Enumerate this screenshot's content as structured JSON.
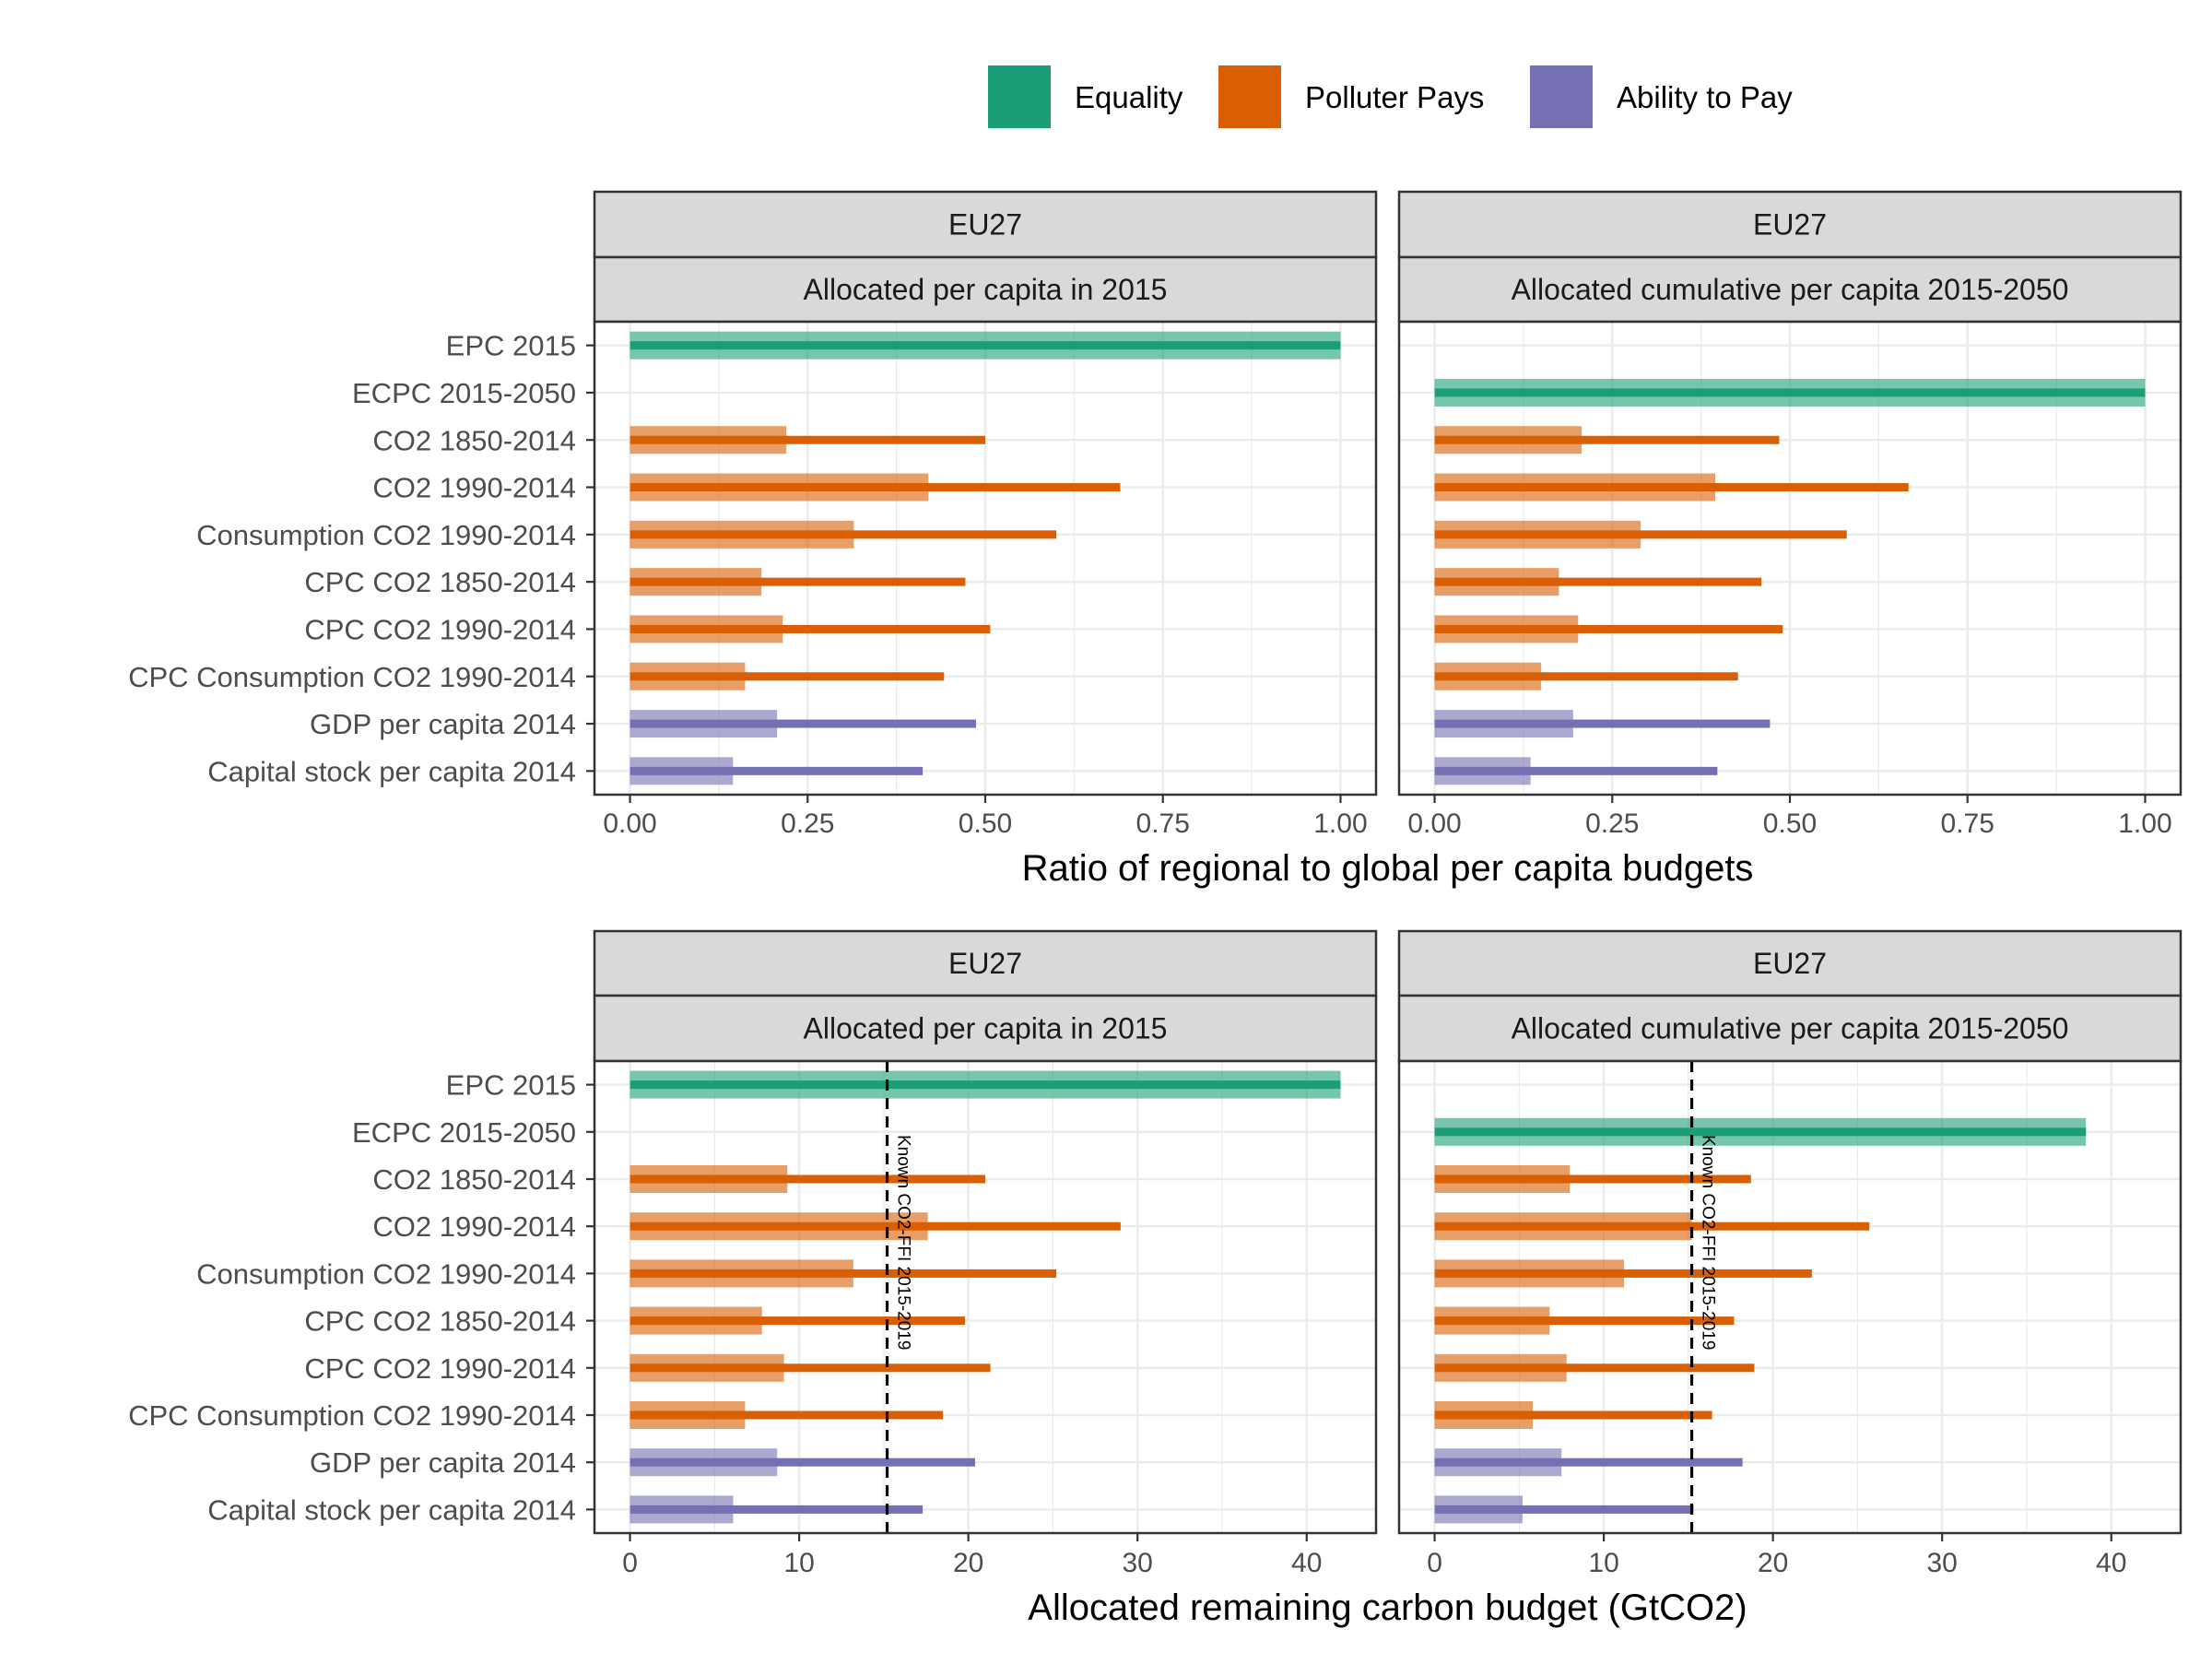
{
  "colors": {
    "Equality": "#1b9e77",
    "Polluter Pays": "#d95f02",
    "Ability to Pay": "#7570b3",
    "grid": "#ebebeb",
    "strip_fill": "#d9d9d9",
    "panel_border": "#333333"
  },
  "legend": {
    "items": [
      {
        "label": "Equality",
        "color_key": "Equality"
      },
      {
        "label": "Polluter Pays",
        "color_key": "Polluter Pays"
      },
      {
        "label": "Ability to Pay",
        "color_key": "Ability to Pay"
      }
    ]
  },
  "chart_data": [
    {
      "type": "bar",
      "orientation": "horizontal",
      "xlabel": "Ratio of regional to global per capita budgets",
      "xlim": [
        -0.05,
        1.05
      ],
      "xticks": [
        0,
        0.25,
        0.5,
        0.75,
        1.0
      ],
      "xtick_labels": [
        "0.00",
        "0.25",
        "0.50",
        "0.75",
        "1.00"
      ],
      "categories": [
        "EPC 2015",
        "ECPC 2015-2050",
        "CO2 1850-2014",
        "CO2 1990-2014",
        "Consumption CO2 1990-2014",
        "CPC CO2 1850-2014",
        "CPC CO2 1990-2014",
        "CPC Consumption CO2 1990-2014",
        "GDP per capita 2014",
        "Capital stock per capita 2014"
      ],
      "groups": [
        "Equality",
        "Equality",
        "Polluter Pays",
        "Polluter Pays",
        "Polluter Pays",
        "Polluter Pays",
        "Polluter Pays",
        "Polluter Pays",
        "Ability to Pay",
        "Ability to Pay"
      ],
      "panels": [
        {
          "strip_top": "EU27",
          "strip_bottom": "Allocated per capita in 2015",
          "wide_values": [
            1.0,
            null,
            0.22,
            0.42,
            0.315,
            0.185,
            0.215,
            0.162,
            0.207,
            0.145
          ],
          "thin_values": [
            1.0,
            null,
            0.5,
            0.69,
            0.6,
            0.472,
            0.507,
            0.442,
            0.487,
            0.412
          ]
        },
        {
          "strip_top": "EU27",
          "strip_bottom": "Allocated cumulative per capita 2015-2050",
          "wide_values": [
            null,
            1.0,
            0.207,
            0.395,
            0.29,
            0.175,
            0.202,
            0.15,
            0.195,
            0.135
          ],
          "thin_values": [
            null,
            1.0,
            0.485,
            0.667,
            0.58,
            0.46,
            0.49,
            0.427,
            0.472,
            0.398
          ]
        }
      ]
    },
    {
      "type": "bar",
      "orientation": "horizontal",
      "xlabel": "Allocated remaining carbon budget (GtCO2)",
      "xlim": [
        -2.1,
        44.1
      ],
      "xticks": [
        0,
        10,
        20,
        30,
        40
      ],
      "xtick_labels": [
        "0",
        "10",
        "20",
        "30",
        "40"
      ],
      "categories": [
        "EPC 2015",
        "ECPC 2015-2050",
        "CO2 1850-2014",
        "CO2 1990-2014",
        "Consumption CO2 1990-2014",
        "CPC CO2 1850-2014",
        "CPC CO2 1990-2014",
        "CPC Consumption CO2 1990-2014",
        "GDP per capita 2014",
        "Capital stock per capita 2014"
      ],
      "groups": [
        "Equality",
        "Equality",
        "Polluter Pays",
        "Polluter Pays",
        "Polluter Pays",
        "Polluter Pays",
        "Polluter Pays",
        "Polluter Pays",
        "Ability to Pay",
        "Ability to Pay"
      ],
      "annotation": "Known CO2-FFI 2015-2019",
      "panels": [
        {
          "strip_top": "EU27",
          "strip_bottom": "Allocated per capita in 2015",
          "wide_values": [
            42.0,
            null,
            9.3,
            17.6,
            13.2,
            7.8,
            9.1,
            6.8,
            8.7,
            6.1
          ],
          "thin_values": [
            42.0,
            null,
            21.0,
            29.0,
            25.2,
            19.8,
            21.3,
            18.5,
            20.4,
            17.3
          ],
          "vline": 15.2
        },
        {
          "strip_top": "EU27",
          "strip_bottom": "Allocated cumulative per capita 2015-2050",
          "wide_values": [
            null,
            38.5,
            8.0,
            15.2,
            11.2,
            6.8,
            7.8,
            5.8,
            7.5,
            5.2
          ],
          "thin_values": [
            null,
            38.5,
            18.7,
            25.7,
            22.3,
            17.7,
            18.9,
            16.4,
            18.2,
            15.3
          ],
          "vline": 15.2
        }
      ]
    }
  ]
}
